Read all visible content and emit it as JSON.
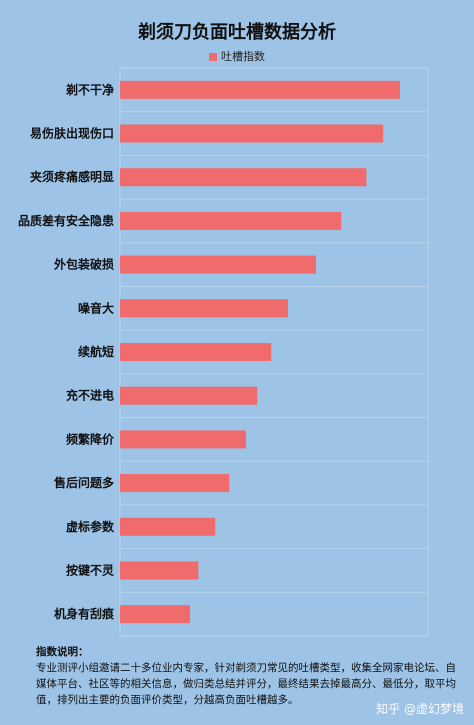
{
  "chart_data": {
    "type": "bar",
    "orientation": "horizontal",
    "title": "剃须刀负面吐槽数据分析",
    "categories": [
      "剃不干净",
      "易伤肤出现伤口",
      "夹须疼痛感明显",
      "品质差有安全隐患",
      "外包装破损",
      "噪音大",
      "续航短",
      "充不进电",
      "频繁降价",
      "售后问题多",
      "虚标参数",
      "按键不灵",
      "机身有刮痕"
    ],
    "series": [
      {
        "name": "吐槽指数",
        "values": [
          100,
          94,
          88,
          79,
          70,
          60,
          54,
          49,
          45,
          39,
          34,
          28,
          25
        ],
        "color": "#f06b6b"
      }
    ],
    "xlim": [
      0,
      110
    ],
    "legend": "top",
    "grid": true
  },
  "notes": {
    "title": "指数说明：",
    "body": "专业测评小组邀请二十多位业内专家，针对剃须刀常见的吐槽类型，收集全网家电论坛、自媒体平台、社区等的相关信息，做归类总结并评分，最终结果去掉最高分、最低分，取平均值，排列出主要的负面评价类型，分越高负面吐槽越多。"
  },
  "watermark": "知乎 @虚幻梦境"
}
